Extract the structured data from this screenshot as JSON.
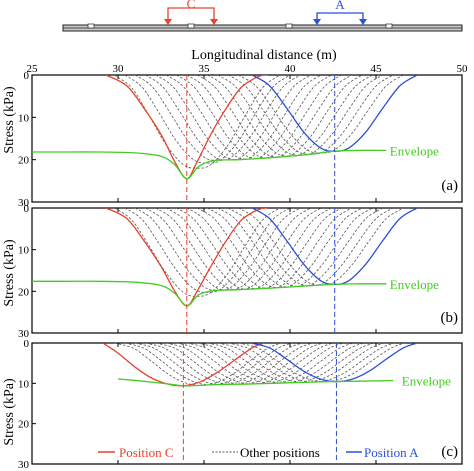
{
  "figure": {
    "xlabel": "Longitudinal distance (m)",
    "ylabel": "Stress (kPa)",
    "xticks": [
      "25",
      "30",
      "35",
      "40",
      "45",
      "50"
    ],
    "marker_c": "C",
    "marker_a": "A",
    "colors": {
      "position_c": "#e8412c",
      "position_a": "#2a4fd8",
      "envelope": "#44cc22",
      "other": "#555555",
      "axis": "#000000"
    }
  },
  "legend": {
    "position_c": "Position C",
    "other": "Other positions",
    "position_a": "Position A",
    "placement": "bottom of panel (c)"
  },
  "chart_data": [
    {
      "type": "line",
      "panel": "(a)",
      "xlim": [
        25,
        50
      ],
      "ylim": [
        30,
        0
      ],
      "y_inverted": true,
      "yticks": [
        "0",
        "10",
        "20",
        "30"
      ],
      "envelope_label": "Envelope",
      "series": [
        {
          "name": "Position C",
          "x": [
            29.3,
            30.5,
            31.5,
            32.5,
            33.3,
            34.0,
            34.6,
            35.4,
            36.3,
            37.2,
            38.2,
            38.7
          ],
          "y": [
            0,
            2.5,
            7.8,
            14.0,
            20.5,
            24.5,
            20.5,
            14.0,
            7.8,
            2.8,
            0.3,
            0
          ]
        },
        {
          "name": "Position A",
          "x": [
            37.8,
            38.8,
            39.8,
            40.8,
            41.8,
            42.6,
            43.4,
            44.4,
            45.4,
            46.4,
            47.4
          ],
          "y": [
            0,
            2.5,
            7.8,
            13.5,
            17.3,
            18.0,
            17.3,
            13.5,
            7.8,
            2.5,
            0
          ]
        },
        {
          "name": "Envelope",
          "x": [
            25,
            27,
            29,
            31,
            32.5,
            33.3,
            34.0,
            34.7,
            35.6,
            37,
            39,
            41,
            42.6,
            44,
            45.6
          ],
          "y": [
            18.2,
            18.2,
            18.2,
            18.4,
            19.2,
            21.2,
            24.5,
            21.6,
            20.2,
            20.0,
            19.5,
            18.8,
            18.0,
            17.8,
            17.8
          ]
        }
      ],
      "other_position_centers": [
        34.6,
        35.2,
        35.8,
        36.4,
        37.0,
        37.6,
        38.2,
        38.8,
        39.4,
        40.0,
        40.6,
        41.2,
        41.8
      ],
      "panel_label": "(a)"
    },
    {
      "type": "line",
      "panel": "(b)",
      "xlim": [
        25,
        50
      ],
      "ylim": [
        30,
        0
      ],
      "y_inverted": true,
      "yticks": [
        "0",
        "10",
        "20",
        "30"
      ],
      "envelope_label": "Envelope",
      "series": [
        {
          "name": "Position C",
          "x": [
            29.3,
            30.5,
            31.5,
            32.5,
            33.3,
            34.0,
            34.6,
            35.4,
            36.3,
            37.2,
            38.2,
            38.7
          ],
          "y": [
            0,
            2.5,
            7.8,
            14.0,
            20.0,
            23.5,
            20.0,
            14.0,
            7.8,
            2.8,
            0.3,
            0
          ]
        },
        {
          "name": "Position A",
          "x": [
            37.8,
            38.8,
            39.8,
            40.8,
            41.8,
            42.6,
            43.4,
            44.4,
            45.4,
            46.4,
            47.4
          ],
          "y": [
            0,
            2.5,
            7.8,
            13.5,
            17.5,
            18.3,
            17.5,
            13.5,
            7.8,
            2.5,
            0
          ]
        },
        {
          "name": "Envelope",
          "x": [
            25,
            27,
            29,
            31,
            32.5,
            33.3,
            34.0,
            34.7,
            35.6,
            37,
            39,
            41,
            42.6,
            44,
            45.6
          ],
          "y": [
            17.6,
            17.6,
            17.6,
            17.8,
            18.6,
            20.5,
            23.5,
            20.8,
            19.8,
            19.6,
            19.2,
            18.7,
            18.3,
            18.2,
            18.2
          ]
        }
      ],
      "other_position_centers": [
        34.6,
        35.2,
        35.8,
        36.4,
        37.0,
        37.6,
        38.2,
        38.8,
        39.4,
        40.0,
        40.6,
        41.2,
        41.8
      ],
      "panel_label": "(b)"
    },
    {
      "type": "line",
      "panel": "(c)",
      "xlim": [
        25,
        50
      ],
      "ylim": [
        30,
        0
      ],
      "y_inverted": true,
      "yticks": [
        "0",
        "10",
        "20",
        "30"
      ],
      "envelope_label": "Envelope",
      "series": [
        {
          "name": "Position C",
          "x": [
            29.2,
            30.0,
            31.0,
            32.0,
            33.0,
            33.8,
            34.8,
            35.8,
            36.8,
            37.8,
            38.5
          ],
          "y": [
            0.2,
            2.5,
            6.0,
            8.8,
            10.3,
            10.6,
            9.6,
            7.2,
            4.2,
            1.2,
            0
          ]
        },
        {
          "name": "Position A",
          "x": [
            37.7,
            38.8,
            39.8,
            40.8,
            41.8,
            42.7,
            43.6,
            44.6,
            45.6,
            46.6,
            47.4
          ],
          "y": [
            0,
            1.2,
            4.0,
            7.0,
            9.0,
            9.6,
            9.0,
            7.0,
            4.0,
            1.2,
            0
          ]
        },
        {
          "name": "Envelope",
          "x": [
            30.0,
            31.5,
            33.0,
            33.8,
            34.8,
            36.0,
            37.5,
            39.0,
            40.5,
            42.0,
            43.5,
            45.0,
            46.0
          ],
          "y": [
            8.9,
            9.5,
            10.2,
            10.6,
            10.5,
            10.3,
            10.2,
            10.0,
            9.8,
            9.6,
            9.5,
            9.4,
            9.3
          ]
        }
      ],
      "other_position_centers": [
        34.8,
        35.4,
        36.0,
        36.6,
        37.2,
        37.8,
        38.4,
        39.0,
        39.6,
        40.2,
        40.8,
        41.4,
        42.0
      ],
      "panel_label": "(c)"
    }
  ]
}
